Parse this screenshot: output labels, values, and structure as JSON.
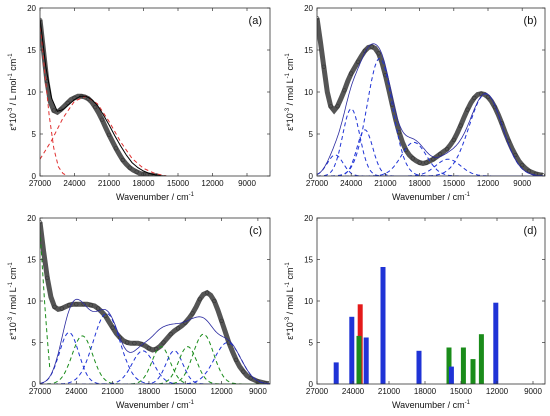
{
  "chart_data": [
    {
      "id": "a",
      "type": "line",
      "panel_label": "(a)",
      "xlabel": "Wavenumber / cm",
      "xlabel_sup": "-1",
      "ylabel_parts": [
        "ε*10",
        "-3",
        " / L mol",
        "-1",
        " cm",
        "-1"
      ],
      "xlim": [
        27000,
        7000
      ],
      "ylim": [
        0,
        20
      ],
      "xticks": [
        27000,
        24000,
        21000,
        18000,
        15000,
        12000,
        9000
      ],
      "yticks": [
        0,
        5,
        10,
        15,
        20
      ],
      "colors": {
        "measured": "#555555",
        "fit": "#000000",
        "b1": "#e03030",
        "b2": "#e03030"
      },
      "measured": {
        "x": [
          27000,
          26700,
          26400,
          26100,
          25800,
          25500,
          25200,
          24900,
          24600,
          24300,
          24000,
          23700,
          23400,
          23100,
          22800,
          22500,
          22200,
          21900,
          21600,
          21300,
          21000,
          20700,
          20400,
          20100,
          19800,
          19500,
          19200,
          18900,
          18600,
          18300,
          18000,
          17700,
          17400,
          17100,
          16800
        ],
        "y": [
          18.6,
          14.9,
          11.3,
          8.8,
          7.8,
          7.6,
          7.9,
          8.3,
          8.7,
          9.1,
          9.3,
          9.5,
          9.5,
          9.4,
          9.2,
          8.8,
          8.2,
          7.5,
          6.7,
          5.8,
          4.9,
          4.1,
          3.3,
          2.6,
          1.9,
          1.4,
          1.0,
          0.7,
          0.5,
          0.3,
          0.2,
          0.15,
          0.1,
          0.05,
          0.02
        ]
      },
      "fit": {
        "x": [
          27000,
          26500,
          26000,
          25500,
          25000,
          24500,
          24000,
          23500,
          23000,
          22500,
          22000,
          21500,
          21000,
          20500,
          20000,
          19500,
          19000,
          18500,
          18000,
          17500,
          17000,
          16500,
          16000
        ],
        "y": [
          18.8,
          13.0,
          9.3,
          7.7,
          7.9,
          8.5,
          9.1,
          9.5,
          9.5,
          9.1,
          8.4,
          7.3,
          6.1,
          4.8,
          3.6,
          2.5,
          1.6,
          1.0,
          0.6,
          0.3,
          0.15,
          0.05,
          0
        ]
      },
      "bands": [
        {
          "name": "",
          "x": [
            27000,
            26600,
            26200,
            25800,
            25400,
            25000,
            24600
          ],
          "y": [
            18.5,
            12.5,
            7.2,
            3.3,
            1.1,
            0.3,
            0
          ]
        },
        {
          "name": "",
          "x": [
            27000,
            26000,
            25000,
            24000,
            23000,
            22000,
            21000,
            20000,
            19000,
            18000,
            17000,
            16000
          ],
          "y": [
            2.0,
            4.2,
            6.9,
            8.9,
            9.5,
            8.6,
            6.5,
            4.1,
            2.1,
            0.9,
            0.3,
            0
          ]
        }
      ]
    },
    {
      "id": "b",
      "type": "line",
      "panel_label": "(b)",
      "xlabel": "Wavenumber / cm",
      "xlabel_sup": "-1",
      "ylabel_parts": [
        "ε*10",
        "-3",
        " / mol L",
        "-1",
        " cm",
        "-1"
      ],
      "xlim": [
        27000,
        7000
      ],
      "ylim": [
        0,
        20
      ],
      "xticks": [
        27000,
        24000,
        21000,
        18000,
        15000,
        12000,
        9000
      ],
      "yticks": [
        0,
        5,
        10,
        15,
        20
      ],
      "colors": {
        "measured": "#555555",
        "fit": "#000000",
        "band": "#1f33d6"
      },
      "measured": {
        "x": [
          27000,
          26700,
          26400,
          26100,
          25800,
          25500,
          25200,
          24900,
          24600,
          24300,
          24000,
          23700,
          23400,
          23100,
          22800,
          22500,
          22200,
          21900,
          21600,
          21300,
          21000,
          20700,
          20400,
          20100,
          19800,
          19500,
          19200,
          18900,
          18600,
          18300,
          18000,
          17700,
          17400,
          17100,
          16800,
          16500,
          16200,
          15900,
          15600,
          15300,
          15000,
          14700,
          14400,
          14100,
          13800,
          13500,
          13200,
          12900,
          12600,
          12300,
          12000,
          11700,
          11400,
          11100,
          10800,
          10500,
          10200,
          9900,
          9600,
          9300,
          9000,
          8700,
          8400,
          8100,
          7800,
          7500,
          7200
        ],
        "y": [
          18.8,
          16.0,
          13.0,
          10.0,
          8.3,
          7.8,
          8.3,
          9.2,
          10.2,
          11.3,
          12.2,
          12.9,
          13.6,
          14.3,
          14.9,
          15.3,
          15.4,
          15.2,
          14.6,
          13.5,
          12.0,
          10.3,
          8.5,
          6.7,
          5.2,
          4.0,
          3.1,
          2.5,
          2.1,
          1.8,
          1.6,
          1.5,
          1.6,
          1.8,
          2.0,
          2.3,
          2.6,
          2.9,
          3.2,
          3.7,
          4.3,
          5.1,
          6.0,
          7.0,
          7.9,
          8.7,
          9.3,
          9.7,
          9.8,
          9.7,
          9.4,
          8.9,
          8.2,
          7.3,
          6.3,
          5.2,
          4.2,
          3.3,
          2.5,
          1.8,
          1.3,
          0.9,
          0.6,
          0.4,
          0.25,
          0.15,
          0.1
        ]
      },
      "bands": [
        {
          "name": "",
          "center": 25400,
          "height": 2.5,
          "width": 700
        },
        {
          "name": "",
          "center": 24000,
          "height": 8.0,
          "width": 750
        },
        {
          "name": "",
          "center": 22800,
          "height": 5.5,
          "width": 700
        },
        {
          "name": "",
          "center": 21500,
          "height": 14.0,
          "width": 1100
        },
        {
          "name": "",
          "center": 18500,
          "height": 4.0,
          "width": 1100
        },
        {
          "name": "",
          "center": 15500,
          "height": 2.0,
          "width": 1100
        },
        {
          "name": "",
          "center": 12200,
          "height": 9.8,
          "width": 1450
        }
      ]
    },
    {
      "id": "c",
      "type": "line",
      "panel_label": "(c)",
      "xlabel": "Wavenumber / cm",
      "xlabel_sup": "-1",
      "ylabel_parts": [
        "ε*10",
        "-3",
        " / mol L",
        "-1",
        " cm",
        "-1"
      ],
      "xlim": [
        27000,
        8000
      ],
      "ylim": [
        0,
        20
      ],
      "xticks": [
        27000,
        24000,
        21000,
        18000,
        15000,
        12000,
        9000
      ],
      "yticks": [
        0,
        5,
        10,
        15,
        20
      ],
      "colors": {
        "measured": "#555555",
        "fit": "#000000",
        "band_blue": "#1f33d6",
        "band_green": "#1a8c1a"
      },
      "measured": {
        "x": [
          27000,
          26700,
          26400,
          26100,
          25800,
          25500,
          25200,
          24900,
          24600,
          24300,
          24000,
          23700,
          23400,
          23100,
          22800,
          22500,
          22200,
          21900,
          21600,
          21300,
          21000,
          20700,
          20400,
          20100,
          19800,
          19500,
          19200,
          18900,
          18600,
          18300,
          18000,
          17700,
          17400,
          17100,
          16800,
          16500,
          16200,
          15900,
          15600,
          15300,
          15000,
          14700,
          14400,
          14100,
          13800,
          13500,
          13200,
          12900,
          12600,
          12300,
          12000,
          11700,
          11400,
          11100,
          10800,
          10500,
          10200,
          9900,
          9600,
          9300,
          9000,
          8700,
          8400,
          8100
        ],
        "y": [
          19.5,
          16.0,
          12.8,
          10.5,
          9.3,
          9.0,
          9.1,
          9.3,
          9.5,
          9.6,
          9.6,
          9.6,
          9.6,
          9.6,
          9.5,
          9.4,
          9.1,
          8.7,
          8.2,
          7.5,
          6.8,
          6.1,
          5.6,
          5.2,
          5.0,
          4.9,
          4.9,
          4.9,
          4.8,
          4.6,
          4.3,
          4.1,
          4.2,
          4.5,
          5.0,
          5.5,
          6.0,
          6.4,
          6.7,
          7.0,
          7.4,
          7.9,
          8.5,
          9.3,
          10.2,
          10.8,
          11.0,
          10.7,
          10.0,
          8.9,
          7.6,
          6.3,
          5.0,
          3.9,
          2.9,
          2.1,
          1.5,
          1.0,
          0.7,
          0.5,
          0.3,
          0.2,
          0.1,
          0.05
        ]
      },
      "bands": [
        {
          "name": "",
          "color": "blue",
          "center": 24600,
          "height": 6.2,
          "width": 800
        },
        {
          "name": "",
          "color": "green",
          "center": 23500,
          "height": 5.8,
          "width": 850
        },
        {
          "name": "",
          "color": "blue",
          "center": 21500,
          "height": 8.5,
          "width": 1100
        },
        {
          "name": "",
          "color": "blue",
          "center": 18500,
          "height": 4.0,
          "width": 900
        },
        {
          "name": "",
          "color": "green",
          "center": 17000,
          "height": 4.5,
          "width": 750
        },
        {
          "name": "",
          "color": "blue",
          "center": 15900,
          "height": 4.0,
          "width": 700
        },
        {
          "name": "",
          "color": "green",
          "center": 14800,
          "height": 4.5,
          "width": 750
        },
        {
          "name": "",
          "color": "green",
          "center": 13500,
          "height": 6.0,
          "width": 850
        },
        {
          "name": "",
          "color": "blue",
          "center": 11500,
          "height": 5.0,
          "width": 1100
        }
      ],
      "cut_band": {
        "name": "",
        "color": "green",
        "x": [
          27000,
          26800,
          26600,
          26400,
          26200
        ],
        "y": [
          18.5,
          14.0,
          9.5,
          5.5,
          2.0
        ]
      }
    },
    {
      "id": "d",
      "type": "bar",
      "panel_label": "(d)",
      "xlabel": "Wavenumber / cm",
      "xlabel_sup": "-1",
      "ylabel_parts": [
        "ε*10",
        "-3",
        " / mol L",
        "-1",
        " cm",
        "-1"
      ],
      "xlim": [
        27000,
        8000
      ],
      "ylim": [
        0,
        20
      ],
      "xticks": [
        27000,
        24000,
        21000,
        18000,
        15000,
        12000,
        9000
      ],
      "yticks": [
        0,
        5,
        10,
        15,
        20
      ],
      "colors": {
        "blue": "#1f33d6",
        "red": "#e41a1a",
        "green": "#1a8c1a"
      },
      "bars": [
        {
          "x": 25400,
          "y": 2.6,
          "color": "blue"
        },
        {
          "x": 24100,
          "y": 8.1,
          "color": "blue"
        },
        {
          "x": 23400,
          "y": 9.6,
          "color": "red"
        },
        {
          "x": 23500,
          "y": 5.8,
          "color": "green"
        },
        {
          "x": 22900,
          "y": 5.6,
          "color": "blue"
        },
        {
          "x": 21500,
          "y": 14.1,
          "color": "blue"
        },
        {
          "x": 18500,
          "y": 4.0,
          "color": "blue"
        },
        {
          "x": 16000,
          "y": 4.4,
          "color": "green"
        },
        {
          "x": 15800,
          "y": 2.1,
          "color": "blue"
        },
        {
          "x": 14800,
          "y": 4.4,
          "color": "green"
        },
        {
          "x": 14000,
          "y": 3.0,
          "color": "green"
        },
        {
          "x": 13300,
          "y": 6.0,
          "color": "green"
        },
        {
          "x": 12100,
          "y": 9.8,
          "color": "blue"
        }
      ]
    }
  ]
}
